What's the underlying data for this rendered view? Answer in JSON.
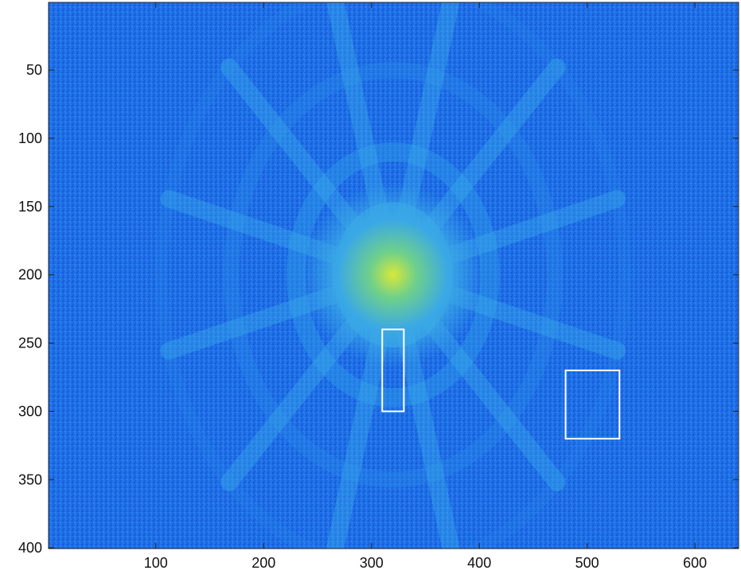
{
  "chart_data": {
    "type": "heatmap",
    "title": "",
    "xlabel": "",
    "ylabel": "",
    "xlim": [
      1,
      640
    ],
    "ylim": [
      1,
      400
    ],
    "y_reversed": true,
    "colormap": "parula",
    "xticks": [
      100,
      200,
      300,
      400,
      500,
      600
    ],
    "yticks": [
      50,
      100,
      150,
      200,
      250,
      300,
      350,
      400
    ],
    "xtick_labels": [
      "100",
      "200",
      "300",
      "400",
      "500",
      "600"
    ],
    "ytick_labels": [
      "50",
      "100",
      "150",
      "200",
      "250",
      "300",
      "350",
      "400"
    ],
    "description_rings": {
      "center": [
        320,
        200
      ],
      "ring_radii": [
        45,
        90,
        150,
        215
      ],
      "spokes": 12
    },
    "rectangles": [
      {
        "name": "roi-1",
        "x0": 310,
        "y0": 240,
        "x1": 330,
        "y1": 300,
        "color": "#ffffff"
      },
      {
        "name": "roi-2",
        "x0": 480,
        "y0": 270,
        "x1": 530,
        "y1": 320,
        "color": "#ffffff"
      }
    ],
    "grid": false
  }
}
